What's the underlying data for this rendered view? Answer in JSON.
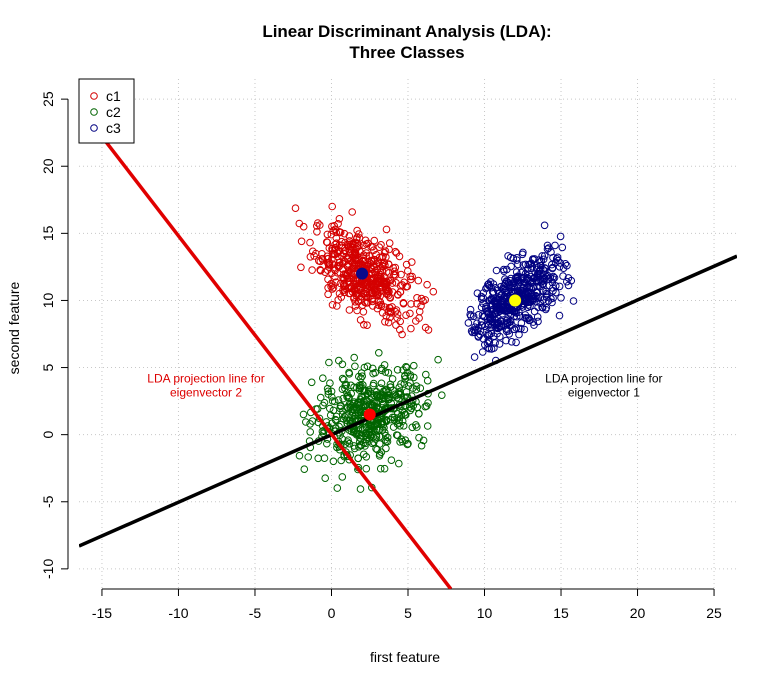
{
  "chart_data": {
    "type": "scatter",
    "title_lines": [
      "Linear Discriminant  Analysis (LDA):",
      "Three Classes"
    ],
    "xlabel": "first feature",
    "ylabel": "second feature",
    "xlim": [
      -16.5,
      26.5
    ],
    "ylim": [
      -11.5,
      26.5
    ],
    "xticks": [
      -15,
      -10,
      -5,
      0,
      5,
      10,
      15,
      20,
      25
    ],
    "yticks": [
      -10,
      -5,
      0,
      5,
      10,
      15,
      20,
      25
    ],
    "grid": true,
    "grid_style": "dotted",
    "legend_position": "top-left",
    "series": [
      {
        "name": "c1",
        "color": "#d40000",
        "marker": "open-circle",
        "count": 500,
        "mean": [
          2,
          12
        ],
        "sd_x": 1.6,
        "sd_y": 1.7,
        "cor": -0.55,
        "x_range": [
          -3,
          7.5
        ],
        "y_range": [
          6.5,
          18.7
        ],
        "centroid": [
          2,
          12
        ],
        "centroid_color": "#0a0a8c"
      },
      {
        "name": "c2",
        "color": "#006400",
        "marker": "open-circle",
        "count": 500,
        "mean": [
          2.5,
          1.5
        ],
        "sd_x": 1.8,
        "sd_y": 1.7,
        "cor": 0.3,
        "x_range": [
          -6.7,
          8.3
        ],
        "y_range": [
          -4.2,
          7.8
        ],
        "centroid": [
          2.5,
          1.5
        ],
        "centroid_color": "#ff0000"
      },
      {
        "name": "c3",
        "color": "#000080",
        "marker": "open-circle",
        "count": 500,
        "mean": [
          12,
          10
        ],
        "sd_x": 1.6,
        "sd_y": 1.7,
        "cor": 0.65,
        "x_range": [
          8.7,
          16.3
        ],
        "y_range": [
          3.7,
          16.5
        ],
        "centroid": [
          12,
          10
        ],
        "centroid_color": "#ffff00"
      }
    ],
    "lines": [
      {
        "label_lines": [
          "LDA projection line for",
          "eigenvector 1"
        ],
        "color": "#000000",
        "points": [
          [
            -16.5,
            -8.3
          ],
          [
            26.5,
            13.3
          ]
        ],
        "label_at": [
          17.8,
          3.9
        ],
        "label_color": "#000000"
      },
      {
        "label_lines": [
          "LDA projection line for",
          "eigenvector 2"
        ],
        "color": "#e00000",
        "points": [
          [
            -15.2,
            22.5
          ],
          [
            7.8,
            -11.5
          ]
        ],
        "label_at": [
          -8.2,
          3.9
        ],
        "label_color": "#dd0000"
      }
    ]
  }
}
